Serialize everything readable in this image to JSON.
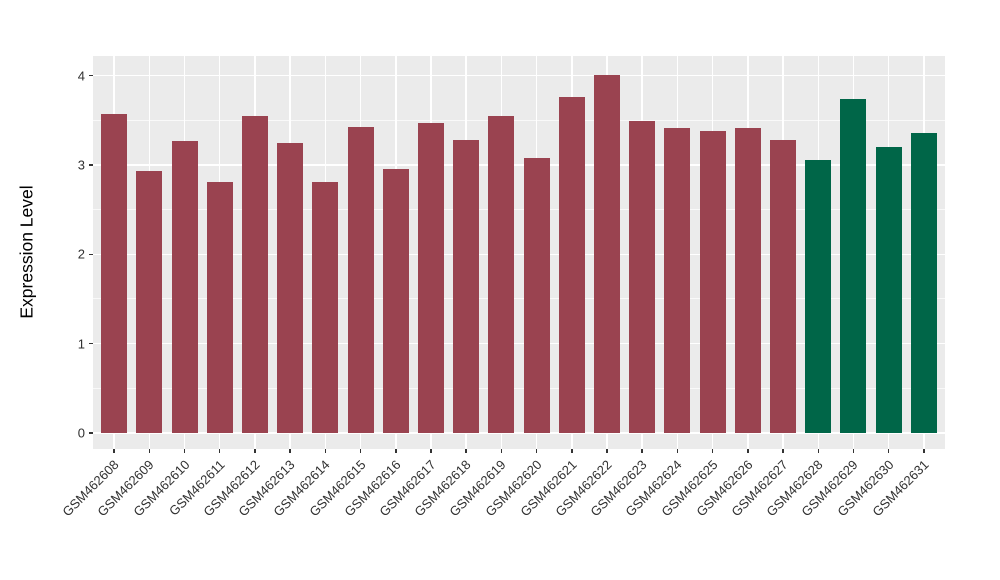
{
  "chart_data": {
    "type": "bar",
    "title": "",
    "xlabel": "",
    "ylabel": "Expression Level",
    "categories": [
      "GSM462608",
      "GSM462609",
      "GSM462610",
      "GSM462611",
      "GSM462612",
      "GSM462613",
      "GSM462614",
      "GSM462615",
      "GSM462616",
      "GSM462617",
      "GSM462618",
      "GSM462619",
      "GSM462620",
      "GSM462621",
      "GSM462622",
      "GSM462623",
      "GSM462624",
      "GSM462625",
      "GSM462626",
      "GSM462627",
      "GSM462628",
      "GSM462629",
      "GSM462630",
      "GSM462631"
    ],
    "values": [
      3.57,
      2.93,
      3.27,
      2.81,
      3.55,
      3.25,
      2.81,
      3.43,
      2.95,
      3.47,
      3.28,
      3.55,
      3.08,
      3.76,
      4.01,
      3.49,
      3.41,
      3.38,
      3.41,
      3.28,
      3.06,
      3.74,
      3.2,
      3.36
    ],
    "bar_colors": [
      "#9A4350",
      "#9A4350",
      "#9A4350",
      "#9A4350",
      "#9A4350",
      "#9A4350",
      "#9A4350",
      "#9A4350",
      "#9A4350",
      "#9A4350",
      "#9A4350",
      "#9A4350",
      "#9A4350",
      "#9A4350",
      "#9A4350",
      "#9A4350",
      "#9A4350",
      "#9A4350",
      "#9A4350",
      "#9A4350",
      "#006648",
      "#006648",
      "#006648",
      "#006648"
    ],
    "palette": {
      "group1_red": "#9A4350",
      "group2_green": "#006648"
    },
    "yticks": [
      0,
      1,
      2,
      3,
      4
    ],
    "minor_yticks": [
      0.5,
      1.5,
      2.5,
      3.5
    ],
    "ylim": [
      -0.18,
      4.22
    ],
    "grid": "white major and minor horizontal lines, white vertical lines at each category",
    "panel_bg": "#EBEBEB",
    "grid_color": "#FFFFFF",
    "tick_color": "#333333",
    "legend_position": "none"
  }
}
